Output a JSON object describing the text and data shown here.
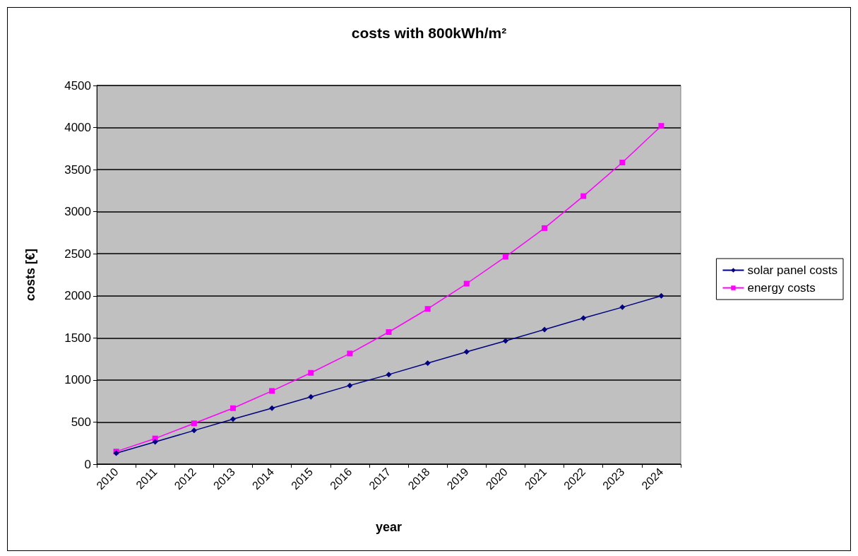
{
  "chart_data": {
    "type": "line",
    "title": "costs with 800kWh/m²",
    "xlabel": "year",
    "ylabel": "costs [€]",
    "categories": [
      "2010",
      "2011",
      "2012",
      "2013",
      "2014",
      "2015",
      "2016",
      "2017",
      "2018",
      "2019",
      "2020",
      "2021",
      "2022",
      "2023",
      "2024"
    ],
    "series": [
      {
        "name": "solar panel costs",
        "color": "#000080",
        "marker": "diamond",
        "values": [
          130,
          265,
          400,
          535,
          665,
          800,
          935,
          1065,
          1200,
          1335,
          1465,
          1600,
          1735,
          1865,
          2000
        ]
      },
      {
        "name": "energy costs",
        "color": "#ff00ff",
        "marker": "square",
        "values": [
          150,
          305,
          485,
          665,
          870,
          1085,
          1315,
          1570,
          1845,
          2145,
          2465,
          2805,
          3185,
          3585,
          4020
        ]
      }
    ],
    "ylim": [
      0,
      4500
    ],
    "yticks": [
      0,
      500,
      1000,
      1500,
      2000,
      2500,
      3000,
      3500,
      4000,
      4500
    ],
    "grid": "y",
    "legend": "right",
    "line_style": "solid"
  }
}
